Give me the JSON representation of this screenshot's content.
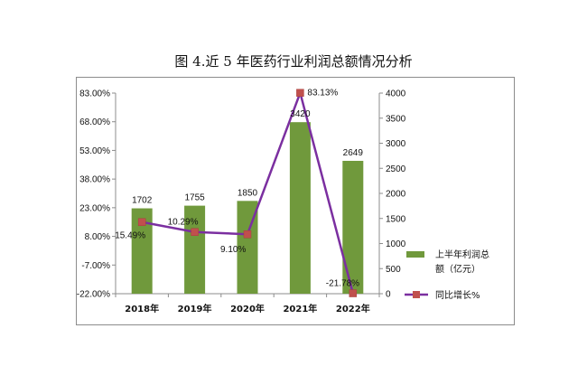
{
  "title": "图 4.近 5 年医药行业利润总额情况分析",
  "chart_data": {
    "type": "bar+line",
    "title": "图 4.近 5 年医药行业利润总额情况分析",
    "categories": [
      "2018年",
      "2019年",
      "2020年",
      "2021年",
      "2022年"
    ],
    "series": [
      {
        "name": "上半年利润总额（亿元）",
        "type": "bar",
        "axis": "right",
        "values": [
          1702,
          1755,
          1850,
          3420,
          2649
        ],
        "labels": [
          "1702",
          "1755",
          "1850",
          "3420",
          "2649"
        ],
        "color": "#70993c"
      },
      {
        "name": "同比增长%",
        "type": "line",
        "axis": "left",
        "values": [
          15.49,
          10.29,
          9.1,
          83.13,
          -21.78
        ],
        "labels": [
          "15.49%",
          "10.29%",
          "9.10%",
          "83.13%",
          "-21.78%"
        ],
        "color": "#7b2fa0",
        "marker_color": "#c0504d"
      }
    ],
    "left_axis": {
      "ylim": [
        -22,
        83
      ],
      "ticks": [
        "83.00%",
        "68.00%",
        "53.00%",
        "38.00%",
        "23.00%",
        "8.00%",
        "-7.00%",
        "-22.00%"
      ],
      "tick_values": [
        83,
        68,
        53,
        38,
        23,
        8,
        -7,
        -22
      ]
    },
    "right_axis": {
      "ylim": [
        0,
        4000
      ],
      "ticks": [
        "4000",
        "3500",
        "3000",
        "2500",
        "2000",
        "1500",
        "1000",
        "500",
        "0"
      ],
      "tick_values": [
        4000,
        3500,
        3000,
        2500,
        2000,
        1500,
        1000,
        500,
        0
      ]
    },
    "grid": false,
    "legend": {
      "placement": "right",
      "entries": [
        {
          "line1": "上半年利润总",
          "line2": "额（亿元）",
          "color": "#70993c"
        },
        {
          "line1": "同比增长%",
          "line2": "",
          "color": "#7b2fa0"
        }
      ]
    }
  }
}
